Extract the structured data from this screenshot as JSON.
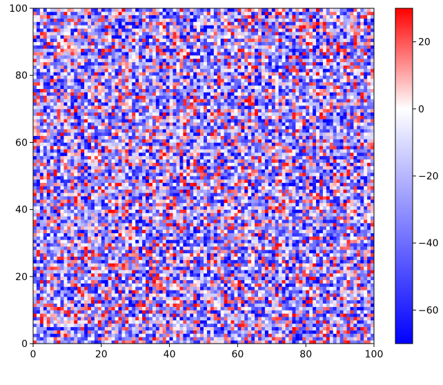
{
  "chart_data": {
    "type": "heatmap",
    "title": "",
    "xlabel": "",
    "ylabel": "",
    "xlim": [
      0,
      100
    ],
    "ylim": [
      0,
      100
    ],
    "grid": false,
    "cells_per_axis": 100,
    "x_ticks": [
      0,
      20,
      40,
      60,
      80,
      100
    ],
    "y_ticks": [
      0,
      20,
      40,
      60,
      80,
      100
    ],
    "x_tick_labels": [
      "0",
      "20",
      "40",
      "60",
      "80",
      "100"
    ],
    "y_tick_labels": [
      "0",
      "20",
      "40",
      "60",
      "80",
      "100"
    ],
    "values_description_note": "",
    "value_range": [
      -70,
      30
    ],
    "colorbar": {
      "colormap": "bwr",
      "vmin": -70,
      "vmax": 30,
      "center": 0,
      "ticks": [
        20,
        0,
        -20,
        -40,
        -60
      ],
      "tick_labels": [
        "20",
        "0",
        "−20",
        "−40",
        "−60"
      ],
      "colors": {
        "low": "#0000ff",
        "mid": "#ffffff",
        "high": "#ff0000"
      }
    }
  }
}
